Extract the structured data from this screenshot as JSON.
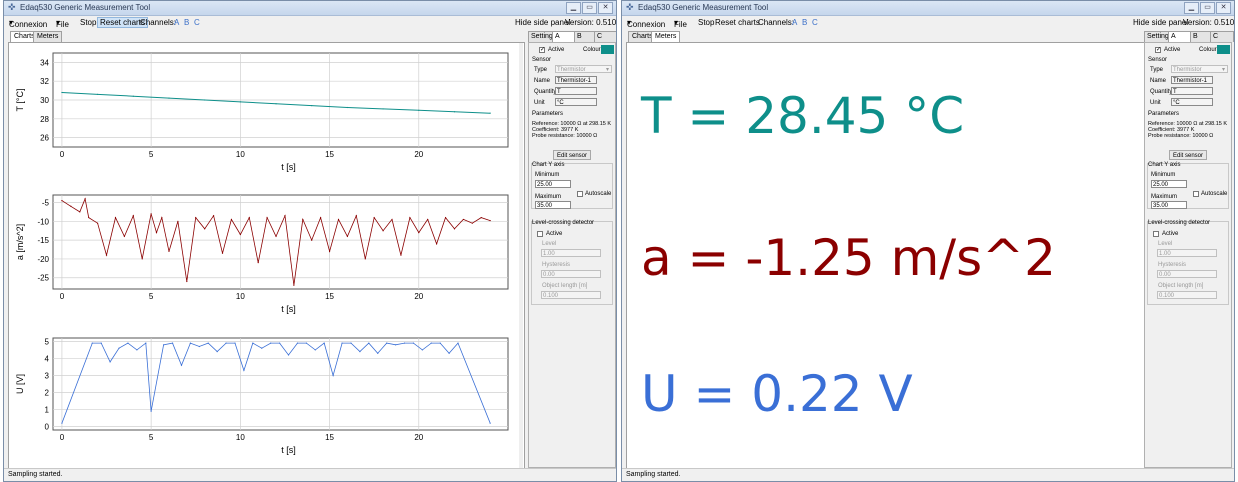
{
  "window_title": "Edaq530 Generic Measurement Tool",
  "menu": {
    "connection": "Connexion",
    "file": "File",
    "stop": "Stop",
    "reset_charts": "Reset charts",
    "channels_label": "Channels:",
    "ch_a": "A",
    "ch_b": "B",
    "ch_c": "C",
    "hide_side_panel": "Hide side panel",
    "version": "Version: 0.510"
  },
  "tabs": {
    "charts": "Charts",
    "meters": "Meters"
  },
  "status": "Sampling started.",
  "colors": {
    "channel_a": "#0e8f8a",
    "channel_b": "#8b0000",
    "channel_c": "#3a6fd6"
  },
  "panel": {
    "tabs": [
      "Settings",
      "A",
      "B",
      "C"
    ],
    "active_label": "Active",
    "colour_label": "Colour",
    "sensor_header": "Sensor",
    "type_label": "Type",
    "type_value": "Thermistor",
    "name_label": "Name",
    "name_value": "Thermistor-1",
    "quantity_label": "Quantity",
    "quantity_value": "T",
    "unit_label": "Unit",
    "unit_value": "°C",
    "parameters_header": "Parameters",
    "param_reference": "Reference: 10000 Ω at 298.15 K",
    "param_coefficient": "Coefficient: 3977 K",
    "param_probe": "Probe resistance: 10000 Ω",
    "edit_sensor": "Edit sensor",
    "chart_y_axis": "Chart Y axis",
    "minimum_label": "Minimum",
    "minimum_value": "25.00",
    "maximum_label": "Maximum",
    "maximum_value": "35.00",
    "autoscale_label": "Autoscale",
    "lcd_header": "Level-crossing detector",
    "lcd_active": "Active",
    "level_label": "Level",
    "level_value": "1.00",
    "hysteresis_label": "Hysteresis",
    "hysteresis_value": "0.00",
    "object_length_label": "Object length [m]",
    "object_length_value": "0.100"
  },
  "meters": {
    "t": "T = 28.45 °C",
    "a": "a = -1.25 m/s^2",
    "u": "U = 0.22 V"
  },
  "chart_data": [
    {
      "type": "line",
      "ylabel": "T [°C]",
      "xlabel": "t [s]",
      "xlim": [
        -0.5,
        25
      ],
      "ylim": [
        25,
        35
      ],
      "x_ticks": [
        0,
        5,
        10,
        15,
        20
      ],
      "y_ticks": [
        26,
        28,
        30,
        32,
        34
      ],
      "series": [
        {
          "x": [
            0,
            2,
            4,
            6,
            8,
            10,
            12,
            14,
            16,
            18,
            20,
            22,
            24
          ],
          "values": [
            30.8,
            30.6,
            30.4,
            30.2,
            30.0,
            29.8,
            29.6,
            29.4,
            29.2,
            29.05,
            28.9,
            28.75,
            28.6
          ]
        }
      ]
    },
    {
      "type": "line",
      "ylabel": "a [m/s^2]",
      "xlabel": "t [s]",
      "xlim": [
        -0.5,
        25
      ],
      "ylim": [
        -28,
        -3
      ],
      "x_ticks": [
        0,
        5,
        10,
        15,
        20
      ],
      "y_ticks": [
        -5,
        -10,
        -15,
        -20,
        -25
      ],
      "series": [
        {
          "x": [
            0,
            0.5,
            1,
            1.3,
            1.5,
            2,
            2.5,
            3,
            3.5,
            4,
            4.5,
            5,
            5.3,
            5.6,
            6,
            6.5,
            7,
            7.5,
            8,
            8.5,
            9,
            9.5,
            10,
            10.5,
            11,
            11.5,
            12,
            12.5,
            13,
            13.5,
            14,
            14.5,
            15,
            15.5,
            16,
            16.5,
            17,
            17.5,
            18,
            18.5,
            19,
            19.5,
            20,
            20.5,
            21,
            21.5,
            22,
            22.5,
            23,
            23.5,
            24
          ],
          "values": [
            -4.5,
            -6.0,
            -7.5,
            -4.0,
            -9.0,
            -10.5,
            -19.0,
            -9.0,
            -14.0,
            -8.5,
            -20.0,
            -8.0,
            -13.0,
            -9.0,
            -18.0,
            -10.0,
            -26.0,
            -9.0,
            -12.0,
            -8.5,
            -18.5,
            -9.5,
            -13.5,
            -9.0,
            -21.0,
            -9.0,
            -14.0,
            -8.5,
            -27.0,
            -9.5,
            -15.0,
            -9.0,
            -18.0,
            -9.5,
            -14.0,
            -8.5,
            -20.0,
            -9.0,
            -12.5,
            -9.5,
            -19.0,
            -9.0,
            -13.0,
            -9.5,
            -16.0,
            -9.0,
            -12.0,
            -9.5,
            -10.5,
            -9.0,
            -9.8
          ]
        }
      ]
    },
    {
      "type": "line",
      "ylabel": "U [V]",
      "xlabel": "t [s]",
      "xlim": [
        -0.5,
        25
      ],
      "ylim": [
        -0.2,
        5.2
      ],
      "x_ticks": [
        0,
        5,
        10,
        15,
        20
      ],
      "y_ticks": [
        0,
        1,
        2,
        3,
        4,
        5
      ],
      "series": [
        {
          "x": [
            0,
            1.7,
            2.2,
            2.7,
            3.2,
            3.7,
            4.2,
            4.7,
            5.0,
            5.7,
            6.2,
            6.7,
            7.2,
            7.7,
            8.2,
            8.7,
            9.2,
            9.7,
            10.2,
            10.7,
            11.2,
            11.7,
            12.2,
            12.7,
            13.2,
            13.7,
            14.2,
            14.7,
            15.2,
            15.7,
            16.2,
            16.7,
            17.2,
            17.7,
            18.2,
            18.7,
            19.2,
            19.7,
            20.2,
            20.7,
            21.2,
            21.7,
            22.2,
            24
          ],
          "values": [
            0.2,
            4.9,
            4.9,
            3.8,
            4.6,
            4.9,
            4.5,
            4.9,
            0.9,
            4.8,
            4.9,
            3.6,
            4.9,
            4.7,
            4.9,
            4.4,
            4.9,
            4.9,
            3.3,
            4.9,
            4.6,
            4.9,
            4.9,
            4.2,
            4.9,
            4.9,
            4.5,
            4.9,
            3.0,
            4.9,
            4.9,
            4.4,
            4.9,
            4.3,
            4.9,
            4.8,
            4.9,
            4.9,
            4.5,
            4.9,
            4.9,
            4.3,
            4.9,
            0.2
          ]
        }
      ]
    }
  ]
}
